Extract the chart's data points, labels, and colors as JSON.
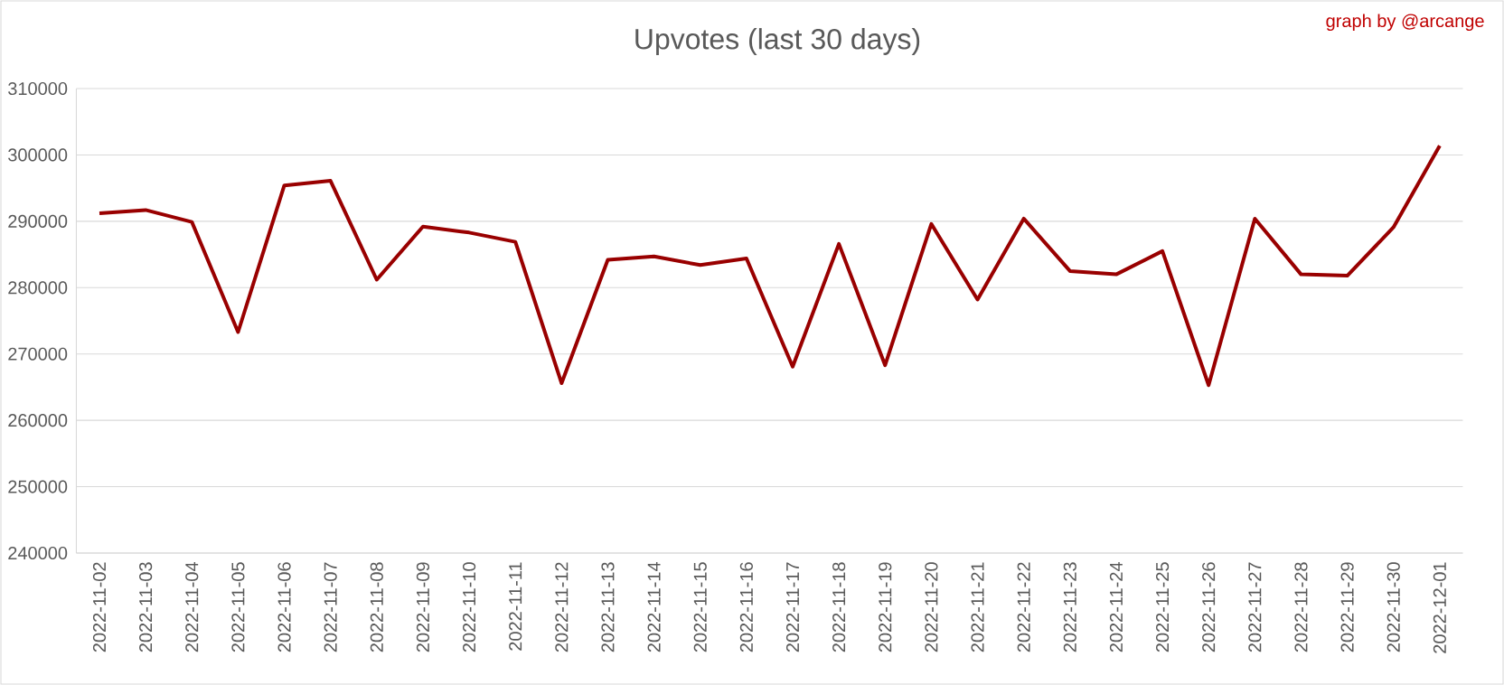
{
  "chart_data": {
    "type": "line",
    "title": "Upvotes (last 30 days)",
    "annotations": [
      "graph by @arcange"
    ],
    "categories": [
      "2022-11-02",
      "2022-11-03",
      "2022-11-04",
      "2022-11-05",
      "2022-11-06",
      "2022-11-07",
      "2022-11-08",
      "2022-11-09",
      "2022-11-10",
      "2022-11-11",
      "2022-11-12",
      "2022-11-13",
      "2022-11-14",
      "2022-11-15",
      "2022-11-16",
      "2022-11-17",
      "2022-11-18",
      "2022-11-19",
      "2022-11-20",
      "2022-11-21",
      "2022-11-22",
      "2022-11-23",
      "2022-11-24",
      "2022-11-25",
      "2022-11-26",
      "2022-11-27",
      "2022-11-28",
      "2022-11-29",
      "2022-11-30",
      "2022-12-01"
    ],
    "series": [
      {
        "color": "#990000",
        "values": [
          291200,
          291700,
          289900,
          273300,
          295400,
          296100,
          281200,
          289200,
          288300,
          286900,
          265600,
          284200,
          284700,
          283400,
          284400,
          268100,
          286600,
          268300,
          289600,
          278200,
          290400,
          282500,
          282000,
          285500,
          265300,
          290400,
          282000,
          281800,
          289100,
          301400
        ]
      }
    ],
    "ylim": [
      240000,
      310000
    ],
    "yticks": [
      240000,
      250000,
      260000,
      270000,
      280000,
      290000,
      300000,
      310000
    ],
    "grid": "y",
    "marker": "none",
    "line_style": "solid"
  }
}
